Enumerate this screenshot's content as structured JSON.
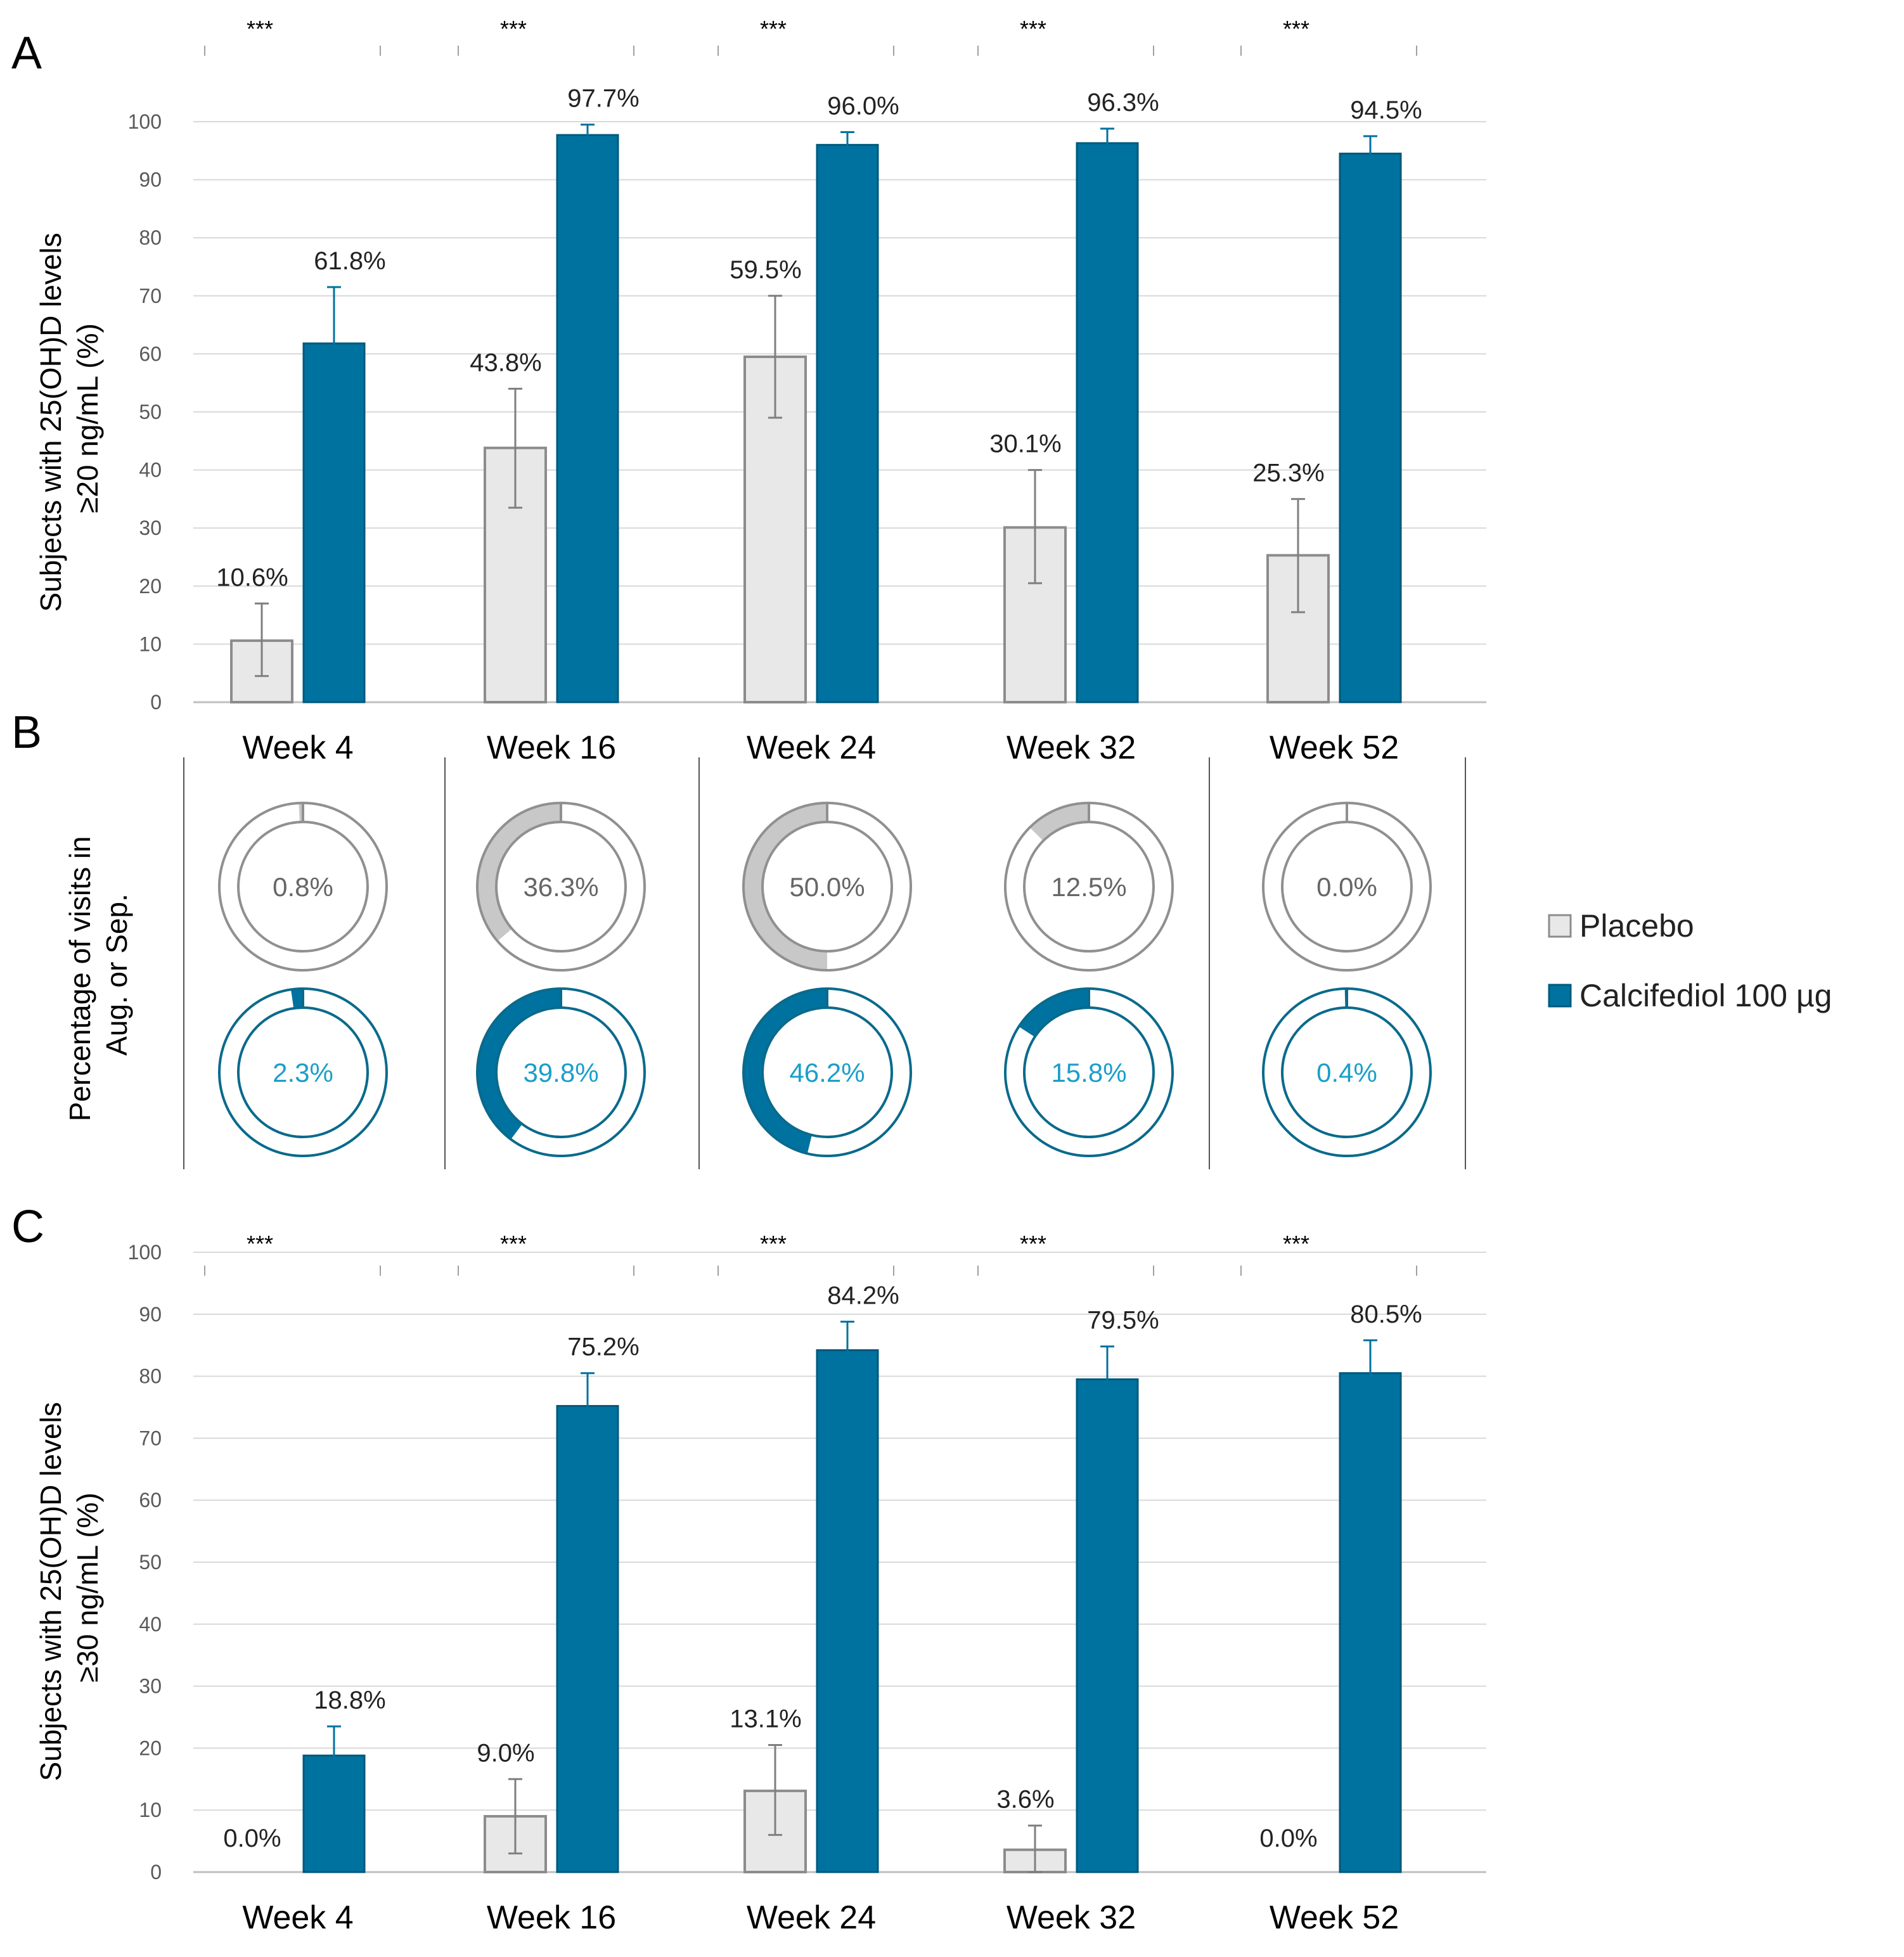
{
  "chart_data": [
    {
      "panel": "A",
      "type": "bar",
      "ylabel": "Subjects with 25(OH)D levels ≥20 ng/mL (%)",
      "ylim": [
        0,
        100
      ],
      "yticks": [
        0,
        10,
        20,
        30,
        40,
        50,
        60,
        70,
        80,
        90,
        100
      ],
      "categories": [
        "Week 4",
        "Week 16",
        "Week 24",
        "Week 32",
        "Week 52"
      ],
      "significance": [
        "***",
        "***",
        "***",
        "***",
        "***"
      ],
      "series": [
        {
          "name": "Placebo",
          "values": [
            10.6,
            43.8,
            59.5,
            30.1,
            25.3
          ],
          "labels": [
            "10.6%",
            "43.8%",
            "59.5%",
            "30.1%",
            "25.3%"
          ],
          "err_low": [
            4.5,
            33.5,
            49,
            20.5,
            15.5
          ],
          "err_high": [
            17,
            54,
            70,
            40,
            35
          ]
        },
        {
          "name": "Calcifediol 100 µg",
          "values": [
            61.8,
            97.7,
            96.0,
            96.3,
            94.5
          ],
          "labels": [
            "61.8%",
            "97.7%",
            "96.0%",
            "96.3%",
            "94.5%"
          ],
          "err_low": [
            60,
            96,
            94,
            94,
            91.5
          ],
          "err_high": [
            71.5,
            99.5,
            98.2,
            98.8,
            97.5
          ]
        }
      ]
    },
    {
      "panel": "B",
      "type": "donut",
      "ylabel_lines": [
        "Percentage of visits in",
        "Aug. or Sep."
      ],
      "categories": [
        "Week 4",
        "Week 16",
        "Week 24",
        "Week 32",
        "Week 52"
      ],
      "series": [
        {
          "name": "Placebo",
          "values": [
            0.8,
            36.3,
            50.0,
            12.5,
            0.0
          ],
          "labels": [
            "0.8%",
            "36.3%",
            "50.0%",
            "12.5%",
            "0.0%"
          ]
        },
        {
          "name": "Calcifediol 100 µg",
          "values": [
            2.3,
            39.8,
            46.2,
            15.8,
            0.4
          ],
          "labels": [
            "2.3%",
            "39.8%",
            "46.2%",
            "15.8%",
            "0.4%"
          ]
        }
      ]
    },
    {
      "panel": "C",
      "type": "bar",
      "ylabel": "Subjects with 25(OH)D levels ≥30 ng/mL (%)",
      "ylim": [
        0,
        100
      ],
      "yticks": [
        0,
        10,
        20,
        30,
        40,
        50,
        60,
        70,
        80,
        90,
        100
      ],
      "categories": [
        "Week 4",
        "Week 16",
        "Week 24",
        "Week 32",
        "Week 52"
      ],
      "significance": [
        "***",
        "***",
        "***",
        "***",
        "***"
      ],
      "series": [
        {
          "name": "Placebo",
          "values": [
            0.0,
            9.0,
            13.1,
            3.6,
            0.0
          ],
          "labels": [
            "0.0%",
            "9.0%",
            "13.1%",
            "3.6%",
            "0.0%"
          ],
          "err_low": [
            null,
            3,
            6,
            0,
            null
          ],
          "err_high": [
            null,
            15,
            20.5,
            7.5,
            null
          ]
        },
        {
          "name": "Calcifediol 100 µg",
          "values": [
            18.8,
            75.2,
            84.2,
            79.5,
            80.5
          ],
          "labels": [
            "18.8%",
            "75.2%",
            "84.2%",
            "79.5%",
            "80.5%"
          ],
          "err_low": [
            14,
            70,
            79.5,
            74.5,
            75.5
          ],
          "err_high": [
            23.5,
            80.5,
            88.8,
            84.8,
            85.8
          ]
        }
      ]
    }
  ],
  "legend": {
    "position": "right",
    "items": [
      {
        "label": "Placebo",
        "color": "#e8e8e8",
        "border": "#8c8c8c"
      },
      {
        "label": "Calcifediol 100 µg",
        "color": "#00729f",
        "border": "#005a7e"
      }
    ]
  },
  "colors": {
    "placebo_fill": "#e8e8e8",
    "placebo_stroke": "#8c8c8c",
    "placebo_err": "#7f7f7f",
    "calcifediol_fill": "#00729f",
    "calcifediol_stroke": "#00587b",
    "donut_placebo": "#c8c8c8",
    "donut_placebo_ring": "#909090",
    "donut_placebo_text": "#666666",
    "donut_calc_ring": "#0a6a8c",
    "donut_calc_text": "#1a9fc8",
    "grid": "#d9d9d9"
  }
}
